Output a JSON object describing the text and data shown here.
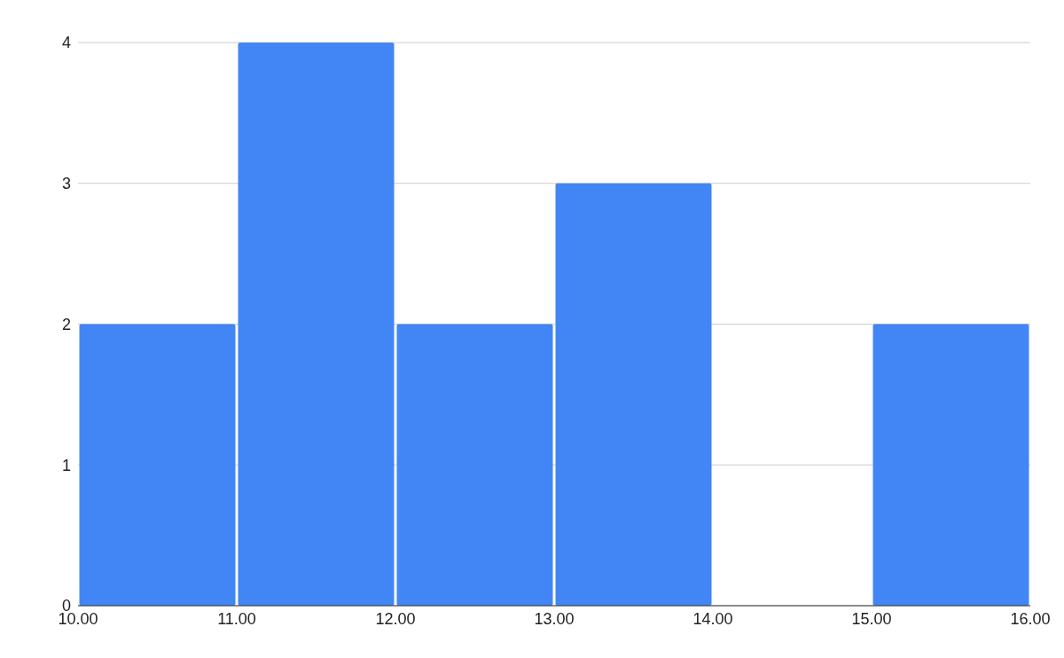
{
  "chart_data": {
    "type": "histogram",
    "bins": [
      10,
      11,
      12,
      13,
      14,
      15,
      16
    ],
    "values": [
      2,
      4,
      2,
      3,
      0,
      2
    ],
    "color": "#4285f4",
    "ylim": [
      0,
      4
    ],
    "yticks": [
      0,
      1,
      2,
      3,
      4
    ],
    "xlim": [
      10,
      16
    ],
    "xticks": [
      {
        "value": 10,
        "label": "10.00"
      },
      {
        "value": 11,
        "label": "11.00"
      },
      {
        "value": 12,
        "label": "12.00"
      },
      {
        "value": 13,
        "label": "13.00"
      },
      {
        "value": 14,
        "label": "14.00"
      },
      {
        "value": 15,
        "label": "15.00"
      },
      {
        "value": 16,
        "label": "16.00"
      }
    ],
    "grid": "y"
  }
}
